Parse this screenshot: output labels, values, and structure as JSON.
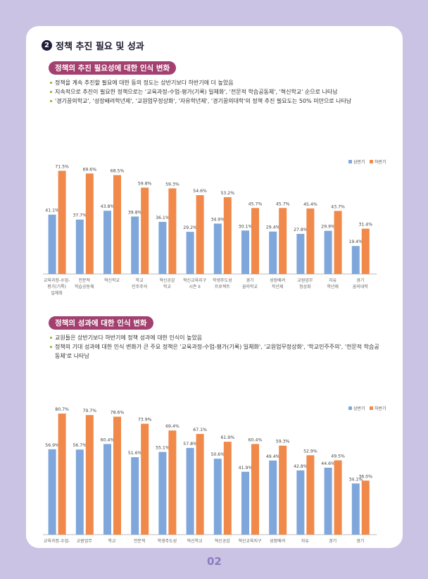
{
  "title_num": "2",
  "title": "정책 추진 필요 및 성과",
  "section1": {
    "heading": "정책의 추진 필요성에 대한 인식 변화",
    "bullets": [
      "정책을 계속 추진할 필요에 대한 동의 정도는 상반기보다 하반기에 더 높았음",
      "지속적으로 추진이 필요한 정책으로는 '교육과정-수업-평가(기록) 일체화', '전문적 학습공동체', '혁신학교' 순으로 나타남",
      "'경기꿈의학교', '성장배려학년제', '교원업무정상화', '자유학년제', '경기꿈의대학'의 정책 추진 필요도는 50% 미만으로 나타남"
    ]
  },
  "section2": {
    "heading": "정책의 성과에 대한 인식 변화",
    "bullets": [
      "교원들은 상반기보다 하반기에 정책 성과에 대한 인식이 높았음",
      "정책의 기대 성과에 대한 인식 변화가 큰 주요 정책은 '교육과정-수업-평가(기록) 일체화', '교원업무정상화', '학교민주주의', '전문적 학습공동체'로 나타남"
    ]
  },
  "page_number": "02",
  "colors": {
    "first": "#7fa7dc",
    "second": "#f0894a"
  },
  "chart_data": [
    {
      "type": "bar",
      "legend": [
        "상반기",
        "하반기"
      ],
      "legend_position": "top-right",
      "ylim": [
        0,
        80
      ],
      "categories": [
        "교육과정-수업-\n평가(기록)\n일체화",
        "전문적\n학습공동체",
        "혁신학교",
        "학교\n민주주의",
        "혁신공감\n학교",
        "혁신교육지구\n시즌 II",
        "학생주도성\n프로젝트",
        "경기\n꿈의학교",
        "성장배려\n학년제",
        "교원업무\n정상화",
        "자유\n학년제",
        "경기\n꿈의대학"
      ],
      "series": [
        {
          "name": "상반기",
          "values": [
            41.1,
            37.7,
            43.8,
            39.8,
            36.1,
            29.2,
            34.9,
            30.1,
            29.4,
            27.8,
            29.9,
            19.4
          ]
        },
        {
          "name": "하반기",
          "values": [
            71.5,
            69.6,
            68.5,
            59.8,
            59.3,
            54.6,
            53.2,
            45.7,
            45.7,
            45.4,
            43.7,
            31.4
          ]
        }
      ]
    },
    {
      "type": "bar",
      "legend": [
        "상반기",
        "하반기"
      ],
      "legend_position": "top-right",
      "ylim": [
        0,
        90
      ],
      "categories": [
        "교육과정-수업-\n평가(기록)\n일체화",
        "교원업무\n정상화",
        "학교\n민주주의",
        "전문적\n학습공동체",
        "학생주도성\n프로젝트",
        "혁신학교",
        "혁신공감\n학교",
        "혁신교육지구\n시즌 II",
        "성장배려\n학년제",
        "자유\n학년제",
        "경기\n꿈의학교",
        "경기\n꿈의대학"
      ],
      "series": [
        {
          "name": "상반기",
          "values": [
            56.9,
            56.7,
            60.4,
            51.6,
            55.1,
            57.8,
            50.6,
            41.9,
            49.4,
            42.8,
            44.6,
            34.1
          ]
        },
        {
          "name": "하반기",
          "values": [
            80.7,
            79.7,
            78.6,
            73.9,
            69.4,
            67.1,
            61.9,
            60.4,
            59.3,
            52.9,
            49.5,
            36.0
          ]
        }
      ]
    }
  ]
}
